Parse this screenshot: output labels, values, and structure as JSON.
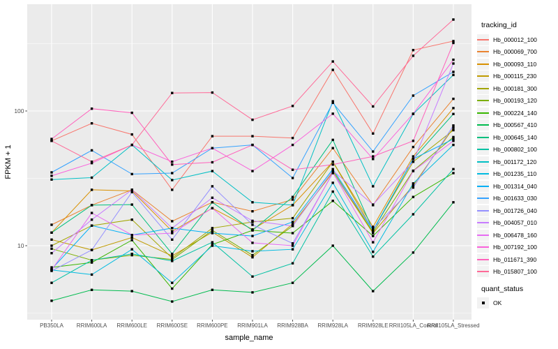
{
  "chart_data": {
    "type": "line",
    "title": "",
    "xlabel": "sample_name",
    "ylabel": "FPKM + 1",
    "y_scale": "log10",
    "legend_title": "tracking_id",
    "legend_position": "right",
    "grid": true,
    "panel_bg": "#EBEBEB",
    "grid_color": "#FFFFFF",
    "axis_text_color": "#4D4D4D",
    "tick_mark_color": "#333333",
    "point_color": "#000000",
    "legend_key_bg": "#F2F2F2",
    "ylim": [
      2.8,
      620
    ],
    "y_major_ticks": [
      {
        "value": 100,
        "label": "100"
      },
      {
        "value": 10,
        "label": "10"
      }
    ],
    "y_minor_gridlines": [
      3.162,
      31.62,
      316.2
    ],
    "categories": [
      "PB350LA",
      "RRIM600LA",
      "RRIM600LE",
      "RRIM600SE",
      "RRIM600PE",
      "RRIM901LA",
      "RRIM928BA",
      "RRIM928LA",
      "RRIM928LE",
      "RRII105LA_Control",
      "RRII105LA_Stressed"
    ],
    "series": [
      {
        "name": "Hb_000012_100",
        "color": "#F8766D",
        "values": [
          60,
          81,
          67,
          26,
          65,
          65,
          63,
          202,
          68,
          283,
          330
        ]
      },
      {
        "name": "Hb_000069_700",
        "color": "#EA8331",
        "values": [
          14.3,
          20,
          26,
          15.2,
          21,
          18,
          22,
          53,
          20,
          54,
          123
        ]
      },
      {
        "name": "Hb_000093_110",
        "color": "#D89000",
        "values": [
          12.5,
          26,
          25.5,
          12.8,
          19,
          13.2,
          20,
          42,
          13.8,
          46,
          105
        ]
      },
      {
        "name": "Hb_000115_230",
        "color": "#C09B00",
        "values": [
          11.1,
          9.3,
          11.5,
          8.4,
          12.6,
          8.2,
          14.5,
          35,
          12.4,
          28,
          75
        ]
      },
      {
        "name": "Hb_000181_300",
        "color": "#A3A500",
        "values": [
          10,
          14.1,
          15.6,
          8.1,
          13.5,
          15,
          16,
          42,
          13,
          42,
          72
        ]
      },
      {
        "name": "Hb_000193_120",
        "color": "#7CAE00",
        "values": [
          9.5,
          7.8,
          8.5,
          7.9,
          13,
          8.5,
          14,
          36,
          12.6,
          36,
          64
        ]
      },
      {
        "name": "Hb_000224_140",
        "color": "#39B600",
        "values": [
          6.9,
          7.5,
          11,
          4.8,
          10.2,
          13,
          12.4,
          21.5,
          11.8,
          23,
          34.6
        ]
      },
      {
        "name": "Hb_000567_410",
        "color": "#00BB4E",
        "values": [
          3.9,
          4.7,
          4.6,
          3.85,
          4.7,
          4.5,
          5.3,
          10,
          4.6,
          8.9,
          21
        ]
      },
      {
        "name": "Hb_000645_140",
        "color": "#00BF7D",
        "values": [
          12.5,
          20,
          20.2,
          8.7,
          21,
          13,
          23,
          61,
          13,
          44,
          95
        ]
      },
      {
        "name": "Hb_000802_100",
        "color": "#00C1A3",
        "values": [
          5.3,
          7.8,
          8.7,
          7.7,
          10.6,
          5.9,
          7.4,
          25.2,
          8.3,
          17.1,
          37
        ]
      },
      {
        "name": "Hb_001172_120",
        "color": "#00BFC4",
        "values": [
          31,
          32,
          56,
          30.7,
          35.8,
          21,
          20,
          118,
          27.6,
          95,
          185
        ]
      },
      {
        "name": "Hb_001235_110",
        "color": "#00BAE0",
        "values": [
          6.6,
          6.1,
          9.4,
          5.3,
          10,
          9.1,
          9.4,
          29.3,
          9,
          29,
          56
        ]
      },
      {
        "name": "Hb_001314_040",
        "color": "#00B0F6",
        "values": [
          6.7,
          14.1,
          12,
          13.5,
          12.4,
          11.8,
          15,
          37,
          13,
          44,
          62
        ]
      },
      {
        "name": "Hb_001633_030",
        "color": "#35A2FF",
        "values": [
          35,
          51,
          34,
          34.6,
          53,
          56,
          31.8,
          115,
          50,
          130,
          195
        ]
      },
      {
        "name": "Hb_001726_040",
        "color": "#9590FF",
        "values": [
          6.5,
          9.3,
          25,
          11.1,
          27.6,
          14.3,
          10.4,
          34.6,
          13.4,
          27,
          78
        ]
      },
      {
        "name": "Hb_004057_010",
        "color": "#C77CFF",
        "values": [
          8.8,
          15.6,
          26,
          13.5,
          22.7,
          15.3,
          14,
          36,
          20.2,
          42,
          225
        ]
      },
      {
        "name": "Hb_006478_160",
        "color": "#E76BF3",
        "values": [
          6.6,
          17.5,
          12,
          12.4,
          19,
          10.5,
          10,
          35,
          10.6,
          35.8,
          60
        ]
      },
      {
        "name": "Hb_007192_100",
        "color": "#FA62DB",
        "values": [
          33,
          41,
          56,
          42,
          53,
          35.8,
          56,
          95.5,
          44,
          95.5,
          240
        ]
      },
      {
        "name": "Hb_011671_390",
        "color": "#FF62BC",
        "values": [
          62,
          104,
          97,
          40,
          41.6,
          56,
          36.6,
          40,
          46,
          60,
          320
        ]
      },
      {
        "name": "Hb_015807_100",
        "color": "#FF6A98",
        "values": [
          60,
          42,
          56,
          136,
          137,
          86,
          109,
          233,
          108,
          257,
          477
        ]
      }
    ],
    "quant_legend": {
      "title": "quant_status",
      "items": [
        {
          "label": "OK",
          "marker": "black-square"
        }
      ]
    }
  }
}
